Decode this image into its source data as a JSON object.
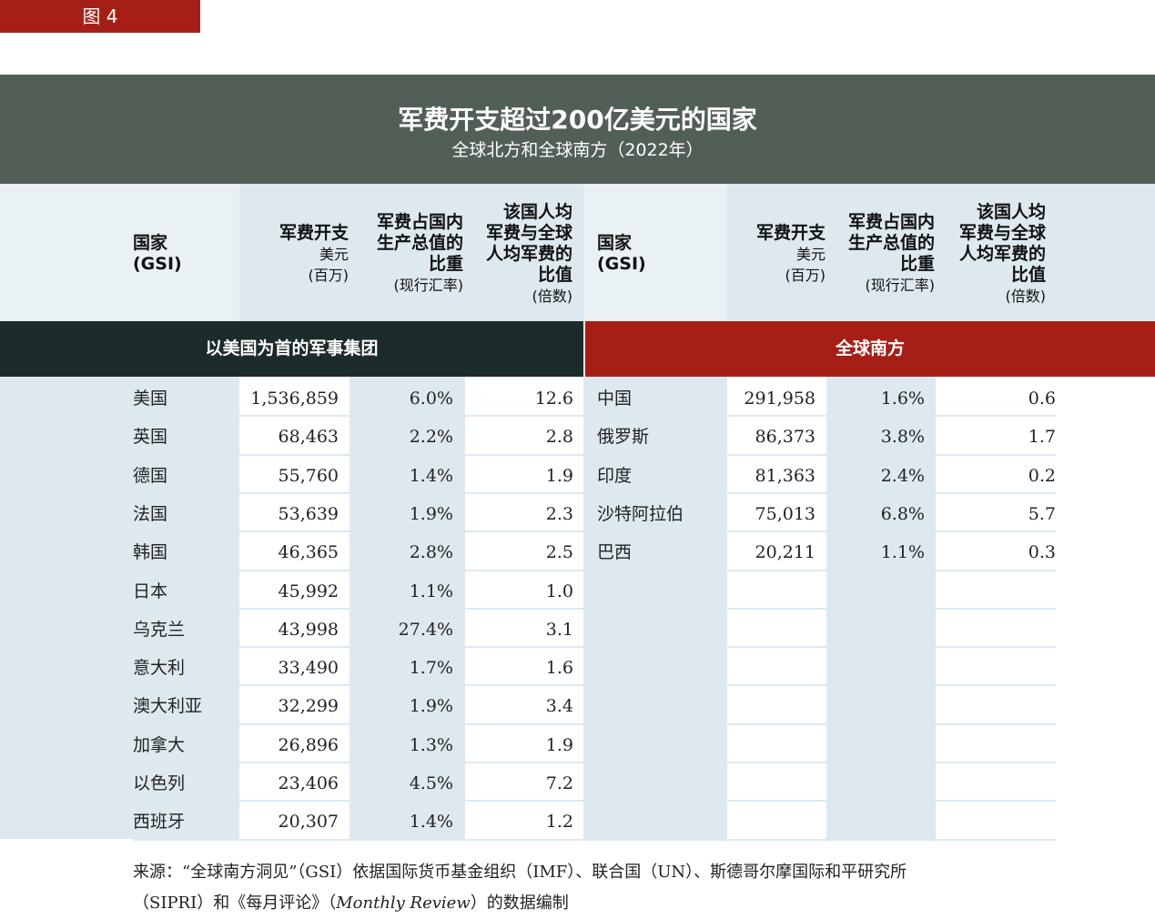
{
  "figure_label": "图 4",
  "title": "军费开支超过200亿美元的国家",
  "subtitle": "全球北方和全球南方（2022年）",
  "headers": {
    "country": "国家",
    "country_sub": "(GSI)",
    "spend": "军费开支",
    "spend_unit1": "美元",
    "spend_unit2": "(百万)",
    "gdp_l1": "军费占国内",
    "gdp_l2": "生产总值的",
    "gdp_l3": "比重",
    "gdp_unit": "(现行汇率)",
    "ratio_l1": "该国人均",
    "ratio_l2": "军费与全球",
    "ratio_l3": "人均军费的",
    "ratio_l4": "比值",
    "ratio_unit": "(倍数)"
  },
  "left_section": "以美国为首的军事集团",
  "right_section": "全球南方",
  "left_rows": [
    [
      "美国",
      "1,536,859",
      "6.0%",
      "12.6"
    ],
    [
      "英国",
      "68,463",
      "2.2%",
      "2.8"
    ],
    [
      "德国",
      "55,760",
      "1.4%",
      "1.9"
    ],
    [
      "法国",
      "53,639",
      "1.9%",
      "2.3"
    ],
    [
      "韩国",
      "46,365",
      "2.8%",
      "2.5"
    ],
    [
      "日本",
      "45,992",
      "1.1%",
      "1.0"
    ],
    [
      "乌克兰",
      "43,998",
      "27.4%",
      "3.1"
    ],
    [
      "意大利",
      "33,490",
      "1.7%",
      "1.6"
    ],
    [
      "澳大利亚",
      "32,299",
      "1.9%",
      "3.4"
    ],
    [
      "加拿大",
      "26,896",
      "1.3%",
      "1.9"
    ],
    [
      "以色列",
      "23,406",
      "4.5%",
      "7.2"
    ],
    [
      "西班牙",
      "20,307",
      "1.4%",
      "1.2"
    ]
  ],
  "right_rows": [
    [
      "中国",
      "291,958",
      "1.6%",
      "0.6"
    ],
    [
      "俄罗斯",
      "86,373",
      "3.8%",
      "1.7"
    ],
    [
      "印度",
      "81,363",
      "2.4%",
      "0.2"
    ],
    [
      "沙特阿拉伯",
      "75,013",
      "6.8%",
      "5.7"
    ],
    [
      "巴西",
      "20,211",
      "1.1%",
      "0.3"
    ]
  ],
  "source_l1": "来源：“全球南方洞见”（GSI）依据国际货币基金组织（IMF）、联合国（UN）、斯德哥尔摩国际和平研究所",
  "source_l2a": "（SIPRI）和《每月评论》（",
  "source_l2b": "Monthly Review",
  "source_l2c": "）的数据编制",
  "colors": {
    "band": "#525f56",
    "left_section": "#1c2b2b",
    "right_section": "#a61f17",
    "light": "#dde9ef"
  }
}
